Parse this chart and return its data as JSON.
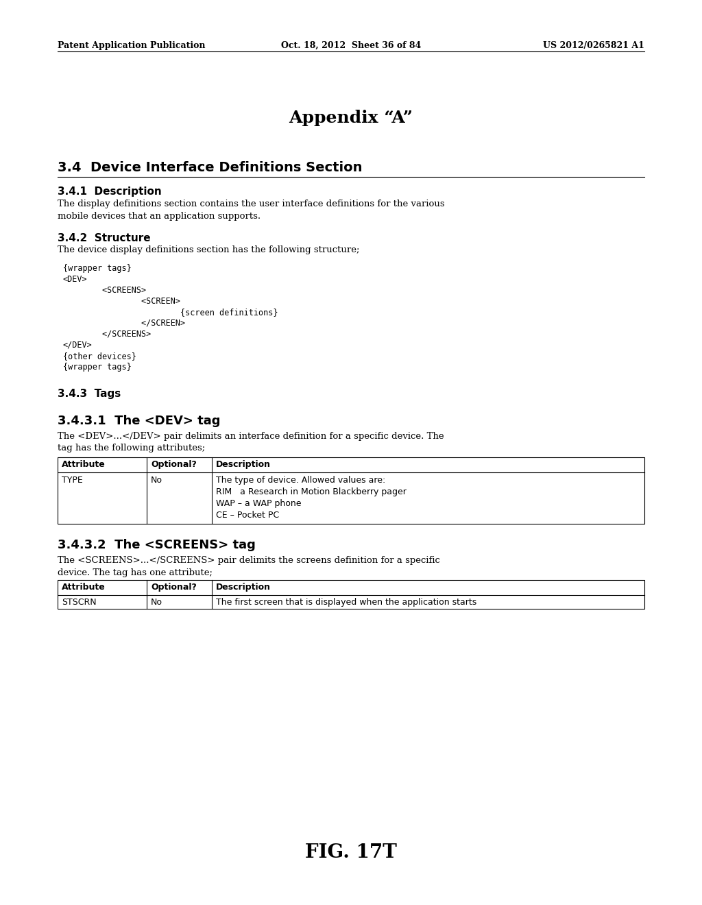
{
  "background_color": "#ffffff",
  "header_left": "Patent Application Publication",
  "header_middle": "Oct. 18, 2012  Sheet 36 of 84",
  "header_right": "US 2012/0265821 A1",
  "title": "Appendix “A”",
  "section_34_title": "3.4  Device Interface Definitions Section",
  "section_341_title": "3.4.1  Description",
  "section_341_body": "The display definitions section contains the user interface definitions for the various\nmobile devices that an application supports.",
  "section_342_title": "3.4.2  Structure",
  "section_342_body": "The device display definitions section has the following structure;",
  "code_lines": [
    "{wrapper tags}",
    "<DEV>",
    "        <SCREENS>",
    "                <SCREEN>",
    "                        {screen definitions}",
    "                </SCREEN>",
    "        </SCREENS>",
    "</DEV>",
    "{other devices}",
    "{wrapper tags}"
  ],
  "section_343_title": "3.4.3  Tags",
  "section_3431_title": "3.4.3.1  The <DEV> tag",
  "section_3431_body": "The <DEV>...<∕DEV> pair delimits an interface definition for a specific device. The\ntag has the following attributes;",
  "table1_headers": [
    "Attribute",
    "Optional?",
    "Description"
  ],
  "table1_row_attr": "TYPE",
  "table1_row_opt": "No",
  "table1_row_desc": [
    "The type of device. Allowed values are:",
    "RIM   a Research in Motion Blackberry pager",
    "WAP – a WAP phone",
    "CE – Pocket PC"
  ],
  "section_3432_title": "3.4.3.2  The <SCREENS> tag",
  "section_3432_body": "The <SCREENS>...<∕SCREENS> pair delimits the screens definition for a specific\ndevice. The tag has one attribute;",
  "table2_headers": [
    "Attribute",
    "Optional?",
    "Description"
  ],
  "table2_row_attr": "STSCRN",
  "table2_row_opt": "No",
  "table2_row_desc": "The first screen that is displayed when the application starts",
  "footer": "FIG. 17T",
  "ml": 0.082,
  "mr": 0.918
}
